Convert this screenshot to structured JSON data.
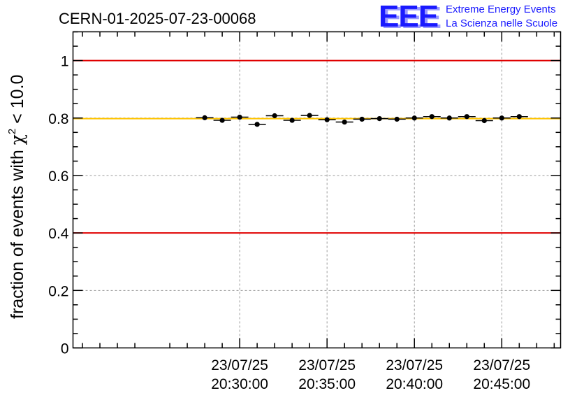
{
  "chart_data": {
    "type": "scatter",
    "title": "CERN-01-2025-07-23-00068",
    "ylabel_main": "fraction of events with ",
    "ylabel_chi": "χ",
    "ylabel_sup": "2",
    "ylabel_tail": " < 10.0",
    "xlabel": "",
    "ylim": [
      0,
      1.1
    ],
    "x_range_min": [
      20,
      27.6
    ],
    "x_range_end_min": [
      48,
      22
    ],
    "yticks": [
      "0",
      "0.2",
      "0.4",
      "0.6",
      "0.8",
      "1"
    ],
    "ytick_values": [
      0,
      0.2,
      0.4,
      0.6,
      0.8,
      1.0
    ],
    "xticks": [
      {
        "minute": 30,
        "date": "23/07/25",
        "time": "20:30:00"
      },
      {
        "minute": 35,
        "date": "23/07/25",
        "time": "20:35:00"
      },
      {
        "minute": 40,
        "date": "23/07/25",
        "time": "20:40:00"
      },
      {
        "minute": 45,
        "date": "23/07/25",
        "time": "20:45:00"
      }
    ],
    "bin_width_min": 1,
    "bin_start_min": 28,
    "values": [
      0.801,
      0.792,
      0.803,
      0.778,
      0.808,
      0.792,
      0.809,
      0.794,
      0.786,
      0.796,
      0.798,
      0.796,
      0.8,
      0.805,
      0.8,
      0.805,
      0.791,
      0.8,
      0.805
    ],
    "reference_lines": [
      {
        "name": "upper-limit",
        "value": 1.0,
        "color": "#e00000"
      },
      {
        "name": "lower-limit",
        "value": 0.4,
        "color": "#e00000"
      },
      {
        "name": "mean",
        "value": 0.798,
        "color": "#ffc400"
      }
    ],
    "grid": true
  },
  "logo": {
    "mark": "EEE",
    "line1": "Extreme Energy Events",
    "line2": "La Scienza nelle Scuole",
    "color": "#1a1aff"
  }
}
